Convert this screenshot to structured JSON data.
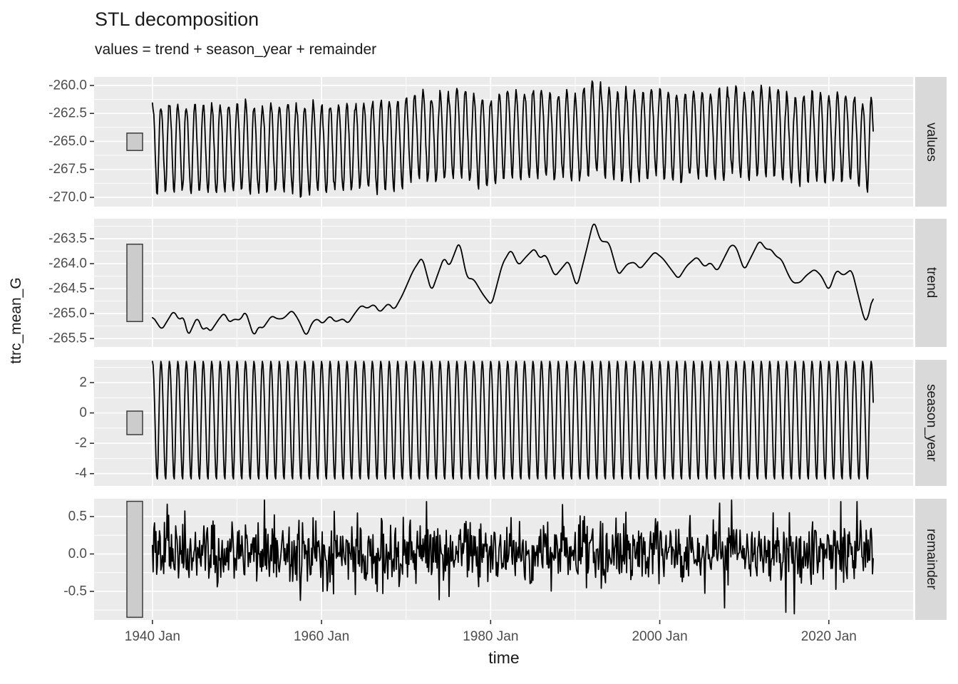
{
  "title": "STL decomposition",
  "subtitle": "values = trend + season_year + remainder",
  "y_axis": {
    "label": "ttrc_mean_G"
  },
  "x_axis": {
    "label": "time",
    "tick_labels": [
      "1940 Jan",
      "1960 Jan",
      "1980 Jan",
      "2000 Jan",
      "2020 Jan"
    ],
    "tick_years": [
      1940,
      1960,
      1980,
      2000,
      2020
    ],
    "minor_years": [
      1950,
      1970,
      1990,
      2010,
      2030
    ]
  },
  "colors": {
    "panel_bg": "#ebebeb",
    "strip_bg": "#d9d9d9",
    "grid": "#ffffff",
    "line": "#000000",
    "tick_text": "#4d4d4d",
    "text": "#1a1a1a",
    "bar_fill": "#cccccc",
    "bar_border": "#3c3c3c",
    "tick_mark": "#333333"
  },
  "chart_data": {
    "type": "line",
    "title": "STL decomposition",
    "subtitle": "values = trend + season_year + remainder",
    "xlabel": "time",
    "ylabel": "ttrc_mean_G",
    "x_domain": [
      1933.1,
      2030.05
    ],
    "time_start": 1940.0,
    "time_end": 2025.25,
    "points_per_year": 12,
    "grid": "on",
    "range_bar_units": 1.55,
    "panels": [
      {
        "label": "values",
        "series": "values",
        "range": [
          -259.24,
          -270.83
        ],
        "ticks": [
          -260.0,
          -262.5,
          -265.0,
          -267.5,
          -270.0
        ],
        "tick_labels": [
          "-260.0",
          "-262.5",
          "-265.0",
          "-267.5",
          "-270.0"
        ]
      },
      {
        "label": "trend",
        "series": "trend",
        "range": [
          -263.1,
          -265.67
        ],
        "ticks": [
          -263.5,
          -264.0,
          -264.5,
          -265.0,
          -265.5
        ],
        "tick_labels": [
          "-263.5",
          "-264.0",
          "-264.5",
          "-265.0",
          "-265.5"
        ]
      },
      {
        "label": "season_year",
        "series": "season_year",
        "range": [
          3.5,
          -4.81
        ],
        "ticks": [
          2,
          0,
          -2,
          -4
        ],
        "tick_labels": [
          "2",
          "0",
          "-2",
          "-4"
        ]
      },
      {
        "label": "remainder",
        "series": "remainder",
        "range": [
          0.738,
          -0.881
        ],
        "ticks": [
          0.5,
          0.0,
          -0.5
        ],
        "tick_labels": [
          "0.5",
          "0.0",
          "-0.5"
        ]
      }
    ],
    "trend_points": [
      [
        1940.0,
        -265.05
      ],
      [
        1941.1,
        -265.33
      ],
      [
        1942.5,
        -264.94
      ],
      [
        1943.2,
        -265.14
      ],
      [
        1943.7,
        -265.04
      ],
      [
        1944.2,
        -265.47
      ],
      [
        1945.3,
        -265.06
      ],
      [
        1946.0,
        -265.36
      ],
      [
        1946.4,
        -265.24
      ],
      [
        1946.8,
        -265.38
      ],
      [
        1947.9,
        -265.1
      ],
      [
        1948.5,
        -264.98
      ],
      [
        1949.1,
        -265.19
      ],
      [
        1949.6,
        -265.11
      ],
      [
        1950.4,
        -265.13
      ],
      [
        1951.0,
        -264.94
      ],
      [
        1952.0,
        -265.47
      ],
      [
        1952.6,
        -265.24
      ],
      [
        1953.0,
        -265.31
      ],
      [
        1954.1,
        -265.04
      ],
      [
        1954.8,
        -265.11
      ],
      [
        1955.5,
        -265.1
      ],
      [
        1956.5,
        -264.93
      ],
      [
        1957.2,
        -265.1
      ],
      [
        1958.2,
        -265.47
      ],
      [
        1958.9,
        -265.17
      ],
      [
        1959.5,
        -265.1
      ],
      [
        1960.1,
        -265.21
      ],
      [
        1961.0,
        -265.04
      ],
      [
        1961.6,
        -265.17
      ],
      [
        1962.6,
        -265.1
      ],
      [
        1963.1,
        -265.21
      ],
      [
        1964.0,
        -264.98
      ],
      [
        1964.7,
        -264.83
      ],
      [
        1965.4,
        -264.9
      ],
      [
        1966.2,
        -264.81
      ],
      [
        1966.9,
        -264.98
      ],
      [
        1967.9,
        -264.79
      ],
      [
        1968.6,
        -264.93
      ],
      [
        1969.6,
        -264.62
      ],
      [
        1970.8,
        -264.15
      ],
      [
        1971.9,
        -263.86
      ],
      [
        1973.0,
        -264.57
      ],
      [
        1974.5,
        -263.86
      ],
      [
        1975.1,
        -264.07
      ],
      [
        1976.3,
        -263.54
      ],
      [
        1977.2,
        -264.29
      ],
      [
        1978.0,
        -264.31
      ],
      [
        1979.1,
        -264.62
      ],
      [
        1980.1,
        -264.84
      ],
      [
        1981.4,
        -264.0
      ],
      [
        1982.4,
        -263.71
      ],
      [
        1983.3,
        -264.04
      ],
      [
        1984.2,
        -263.86
      ],
      [
        1985.2,
        -263.69
      ],
      [
        1985.8,
        -263.9
      ],
      [
        1986.5,
        -263.81
      ],
      [
        1987.6,
        -264.26
      ],
      [
        1989.2,
        -263.93
      ],
      [
        1990.2,
        -264.49
      ],
      [
        1991.3,
        -263.75
      ],
      [
        1992.2,
        -263.12
      ],
      [
        1993.0,
        -263.55
      ],
      [
        1994.0,
        -263.57
      ],
      [
        1995.1,
        -264.24
      ],
      [
        1996.2,
        -264.0
      ],
      [
        1997.0,
        -263.97
      ],
      [
        1997.7,
        -264.11
      ],
      [
        1999.4,
        -263.76
      ],
      [
        2000.4,
        -263.9
      ],
      [
        2002.2,
        -264.31
      ],
      [
        2003.2,
        -264.04
      ],
      [
        2004.4,
        -263.86
      ],
      [
        2005.3,
        -264.07
      ],
      [
        2006.0,
        -263.97
      ],
      [
        2006.8,
        -264.16
      ],
      [
        2008.4,
        -263.62
      ],
      [
        2009.0,
        -263.65
      ],
      [
        2010.0,
        -264.14
      ],
      [
        2011.8,
        -263.53
      ],
      [
        2012.6,
        -263.72
      ],
      [
        2013.1,
        -263.7
      ],
      [
        2013.8,
        -263.86
      ],
      [
        2014.4,
        -263.91
      ],
      [
        2015.3,
        -264.26
      ],
      [
        2015.8,
        -264.39
      ],
      [
        2016.6,
        -264.38
      ],
      [
        2017.3,
        -264.24
      ],
      [
        2018.3,
        -264.11
      ],
      [
        2019.1,
        -264.24
      ],
      [
        2020.0,
        -264.55
      ],
      [
        2020.9,
        -264.12
      ],
      [
        2021.7,
        -264.24
      ],
      [
        2022.7,
        -264.11
      ],
      [
        2024.2,
        -265.13
      ],
      [
        2024.5,
        -265.17
      ],
      [
        2025.25,
        -264.62
      ]
    ],
    "season_pattern_monthly": [
      3.4,
      3.15,
      2.2,
      0.7,
      -1.1,
      -2.9,
      -4.15,
      -4.35,
      -3.1,
      -0.8,
      1.3,
      2.8
    ],
    "remainder_model": {
      "seed": 12345,
      "scale": 0.42,
      "tail_prob": 0.035,
      "tail_mult": 1.85,
      "clip": [
        -0.78,
        0.72
      ],
      "outliers": [
        [
          1953.25,
          0.72
        ],
        [
          1957.5,
          -0.62
        ],
        [
          1972.4,
          0.7
        ],
        [
          1988.5,
          0.66
        ],
        [
          2007.1,
          0.68
        ],
        [
          2013.4,
          0.55
        ],
        [
          2015.92,
          -0.8
        ],
        [
          2021.4,
          0.7
        ],
        [
          2023.3,
          0.7
        ]
      ]
    }
  }
}
